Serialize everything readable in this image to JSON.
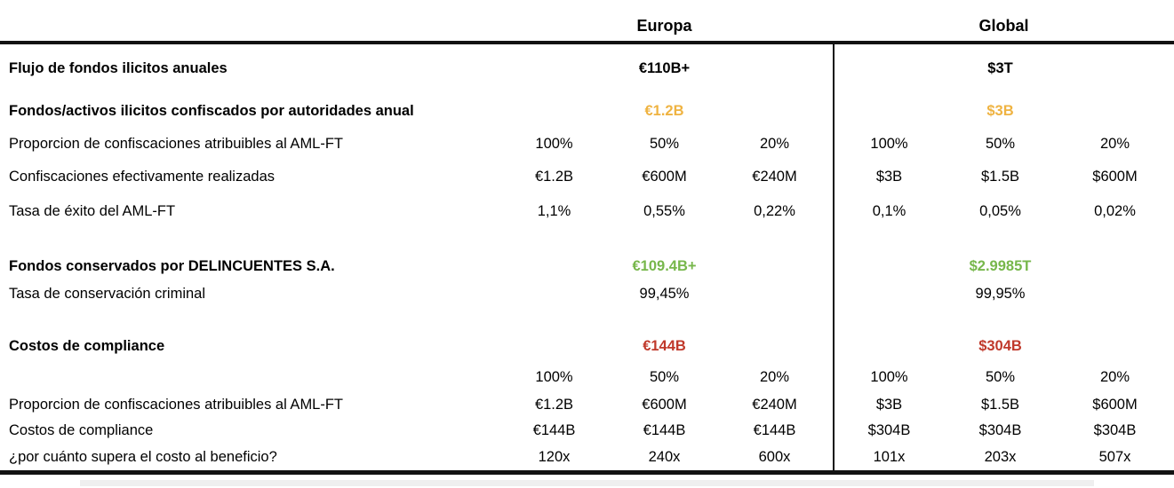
{
  "header": {
    "europa": "Europa",
    "global": "Global"
  },
  "accent_colors": {
    "gold": "#EFB341",
    "green": "#77B74B",
    "red": "#C0392B",
    "default": "#000000"
  },
  "table": {
    "rows": [
      {
        "label": "Flujo de fondos ilicitos anuales",
        "bold": true,
        "color": "default",
        "europa": [
          "",
          "€110B+",
          ""
        ],
        "global": [
          "",
          "$3T",
          ""
        ]
      },
      {
        "label": "Fondos/activos ilicitos confiscados por autoridades anual",
        "bold": true,
        "color": "gold",
        "europa": [
          "",
          "€1.2B",
          ""
        ],
        "global": [
          "",
          "$3B",
          ""
        ]
      },
      {
        "label": "Proporcion de confiscaciones atribuibles al AML-FT",
        "bold": false,
        "color": "default",
        "europa": [
          "100%",
          "50%",
          "20%"
        ],
        "global": [
          "100%",
          "50%",
          "20%"
        ]
      },
      {
        "label": "Confiscaciones efectivamente realizadas",
        "bold": false,
        "color": "default",
        "europa": [
          "€1.2B",
          "€600M",
          "€240M"
        ],
        "global": [
          "$3B",
          "$1.5B",
          "$600M"
        ]
      },
      {
        "label": "Tasa de éxito del AML-FT",
        "bold": false,
        "color": "default",
        "europa": [
          "1,1%",
          "0,55%",
          "0,22%"
        ],
        "global": [
          "0,1%",
          "0,05%",
          "0,02%"
        ]
      },
      {
        "spacer": true
      },
      {
        "label": "Fondos conservados por DELINCUENTES S.A.",
        "bold": true,
        "color": "green",
        "europa": [
          "",
          "€109.4B+",
          ""
        ],
        "global": [
          "",
          "$2.9985T",
          ""
        ]
      },
      {
        "label": "Tasa de conservación criminal",
        "bold": false,
        "color": "default",
        "europa": [
          "",
          "99,45%",
          ""
        ],
        "global": [
          "",
          "99,95%",
          ""
        ]
      },
      {
        "spacer": true
      },
      {
        "label": "Costos de compliance",
        "bold": true,
        "color": "red",
        "europa": [
          "",
          "€144B",
          ""
        ],
        "global": [
          "",
          "$304B",
          ""
        ]
      },
      {
        "label": "",
        "bold": false,
        "color": "default",
        "europa": [
          "100%",
          "50%",
          "20%"
        ],
        "global": [
          "100%",
          "50%",
          "20%"
        ]
      },
      {
        "label": "Proporcion de confiscaciones atribuibles al AML-FT",
        "bold": false,
        "color": "default",
        "europa": [
          "€1.2B",
          "€600M",
          "€240M"
        ],
        "global": [
          "$3B",
          "$1.5B",
          "$600M"
        ]
      },
      {
        "label": "Costos de compliance",
        "bold": false,
        "color": "default",
        "europa": [
          "€144B",
          "€144B",
          "€144B"
        ],
        "global": [
          "$304B",
          "$304B",
          "$304B"
        ]
      },
      {
        "label": "¿por cuánto supera el costo al beneficio?",
        "bold": false,
        "color": "default",
        "europa": [
          "120x",
          "240x",
          "600x"
        ],
        "global": [
          "101x",
          "203x",
          "507x"
        ]
      }
    ]
  }
}
